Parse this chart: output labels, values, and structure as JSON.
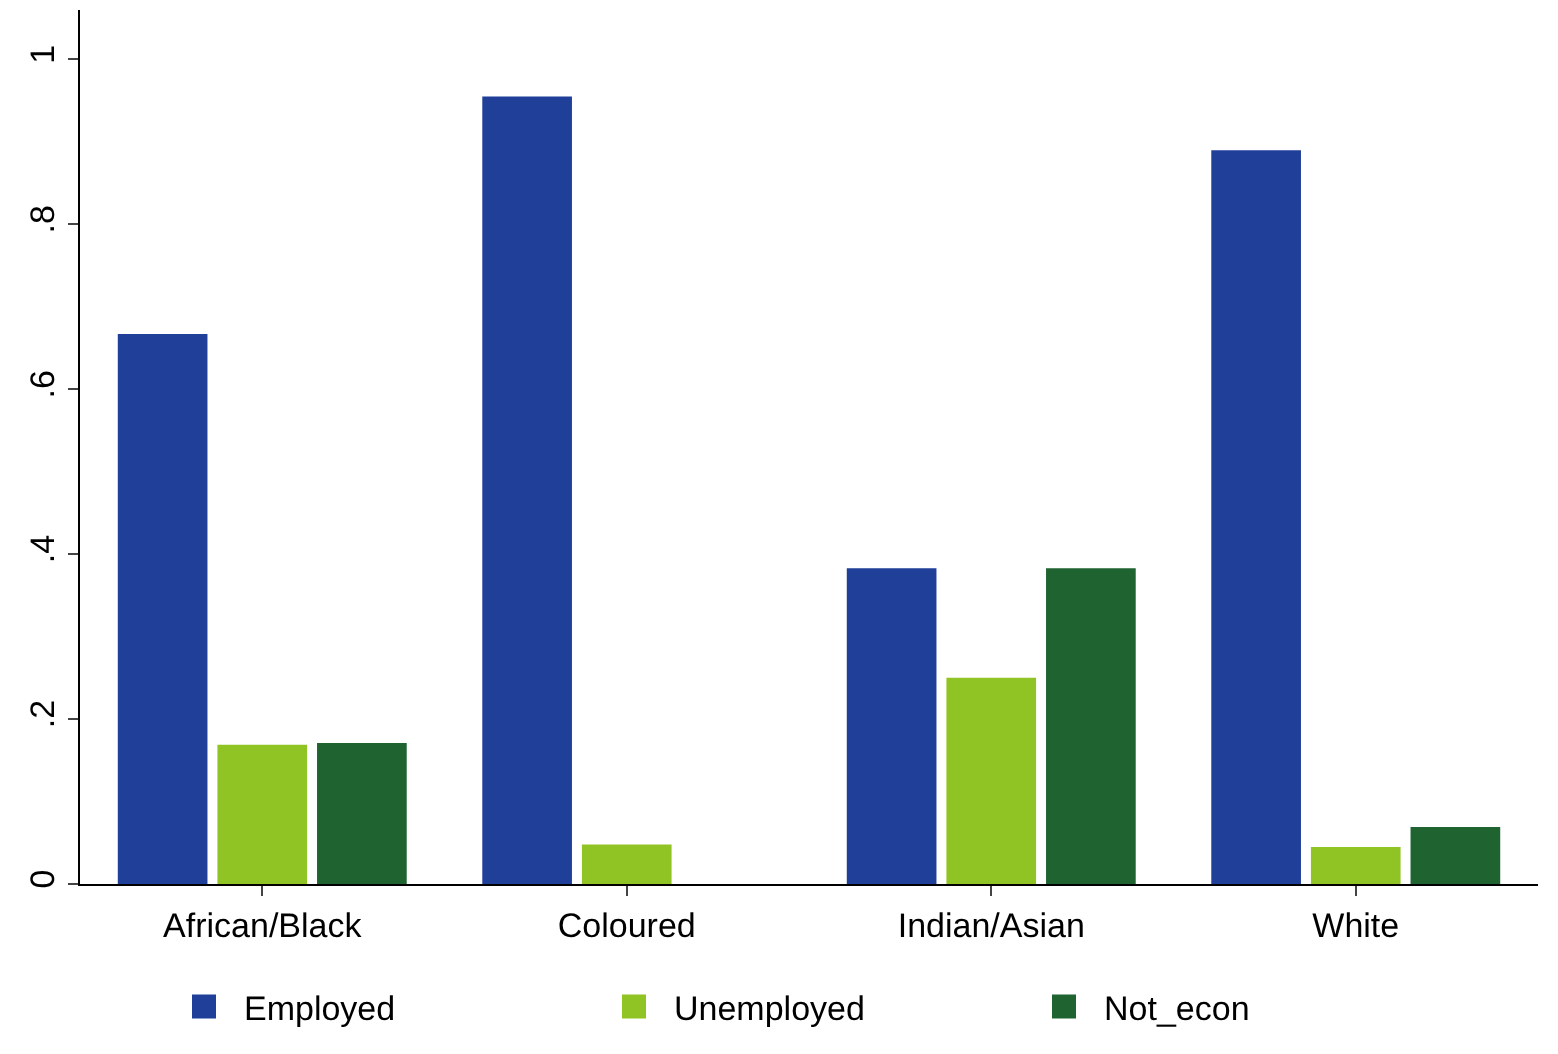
{
  "chart_data": {
    "type": "bar",
    "categories": [
      "African/Black",
      "Coloured",
      "Indian/Asian",
      "White"
    ],
    "series": [
      {
        "name": "Employed",
        "color": "#1f3f99",
        "values": [
          0.667,
          0.955,
          0.383,
          0.89
        ]
      },
      {
        "name": "Unemployed",
        "color": "#8fc424",
        "values": [
          0.169,
          0.048,
          0.25,
          0.045
        ]
      },
      {
        "name": "Not_econ",
        "color": "#1e6330",
        "values": [
          0.171,
          0,
          0.383,
          0.069
        ]
      }
    ],
    "ylim": [
      0,
      1.06
    ],
    "yticks": [
      0,
      {
        "value": 0.2,
        "label": ".2"
      },
      {
        "value": 0.4,
        "label": ".4"
      },
      {
        "value": 0.6,
        "label": ".6"
      },
      {
        "value": 0.8,
        "label": ".8"
      },
      1
    ],
    "legend": "bottom"
  }
}
